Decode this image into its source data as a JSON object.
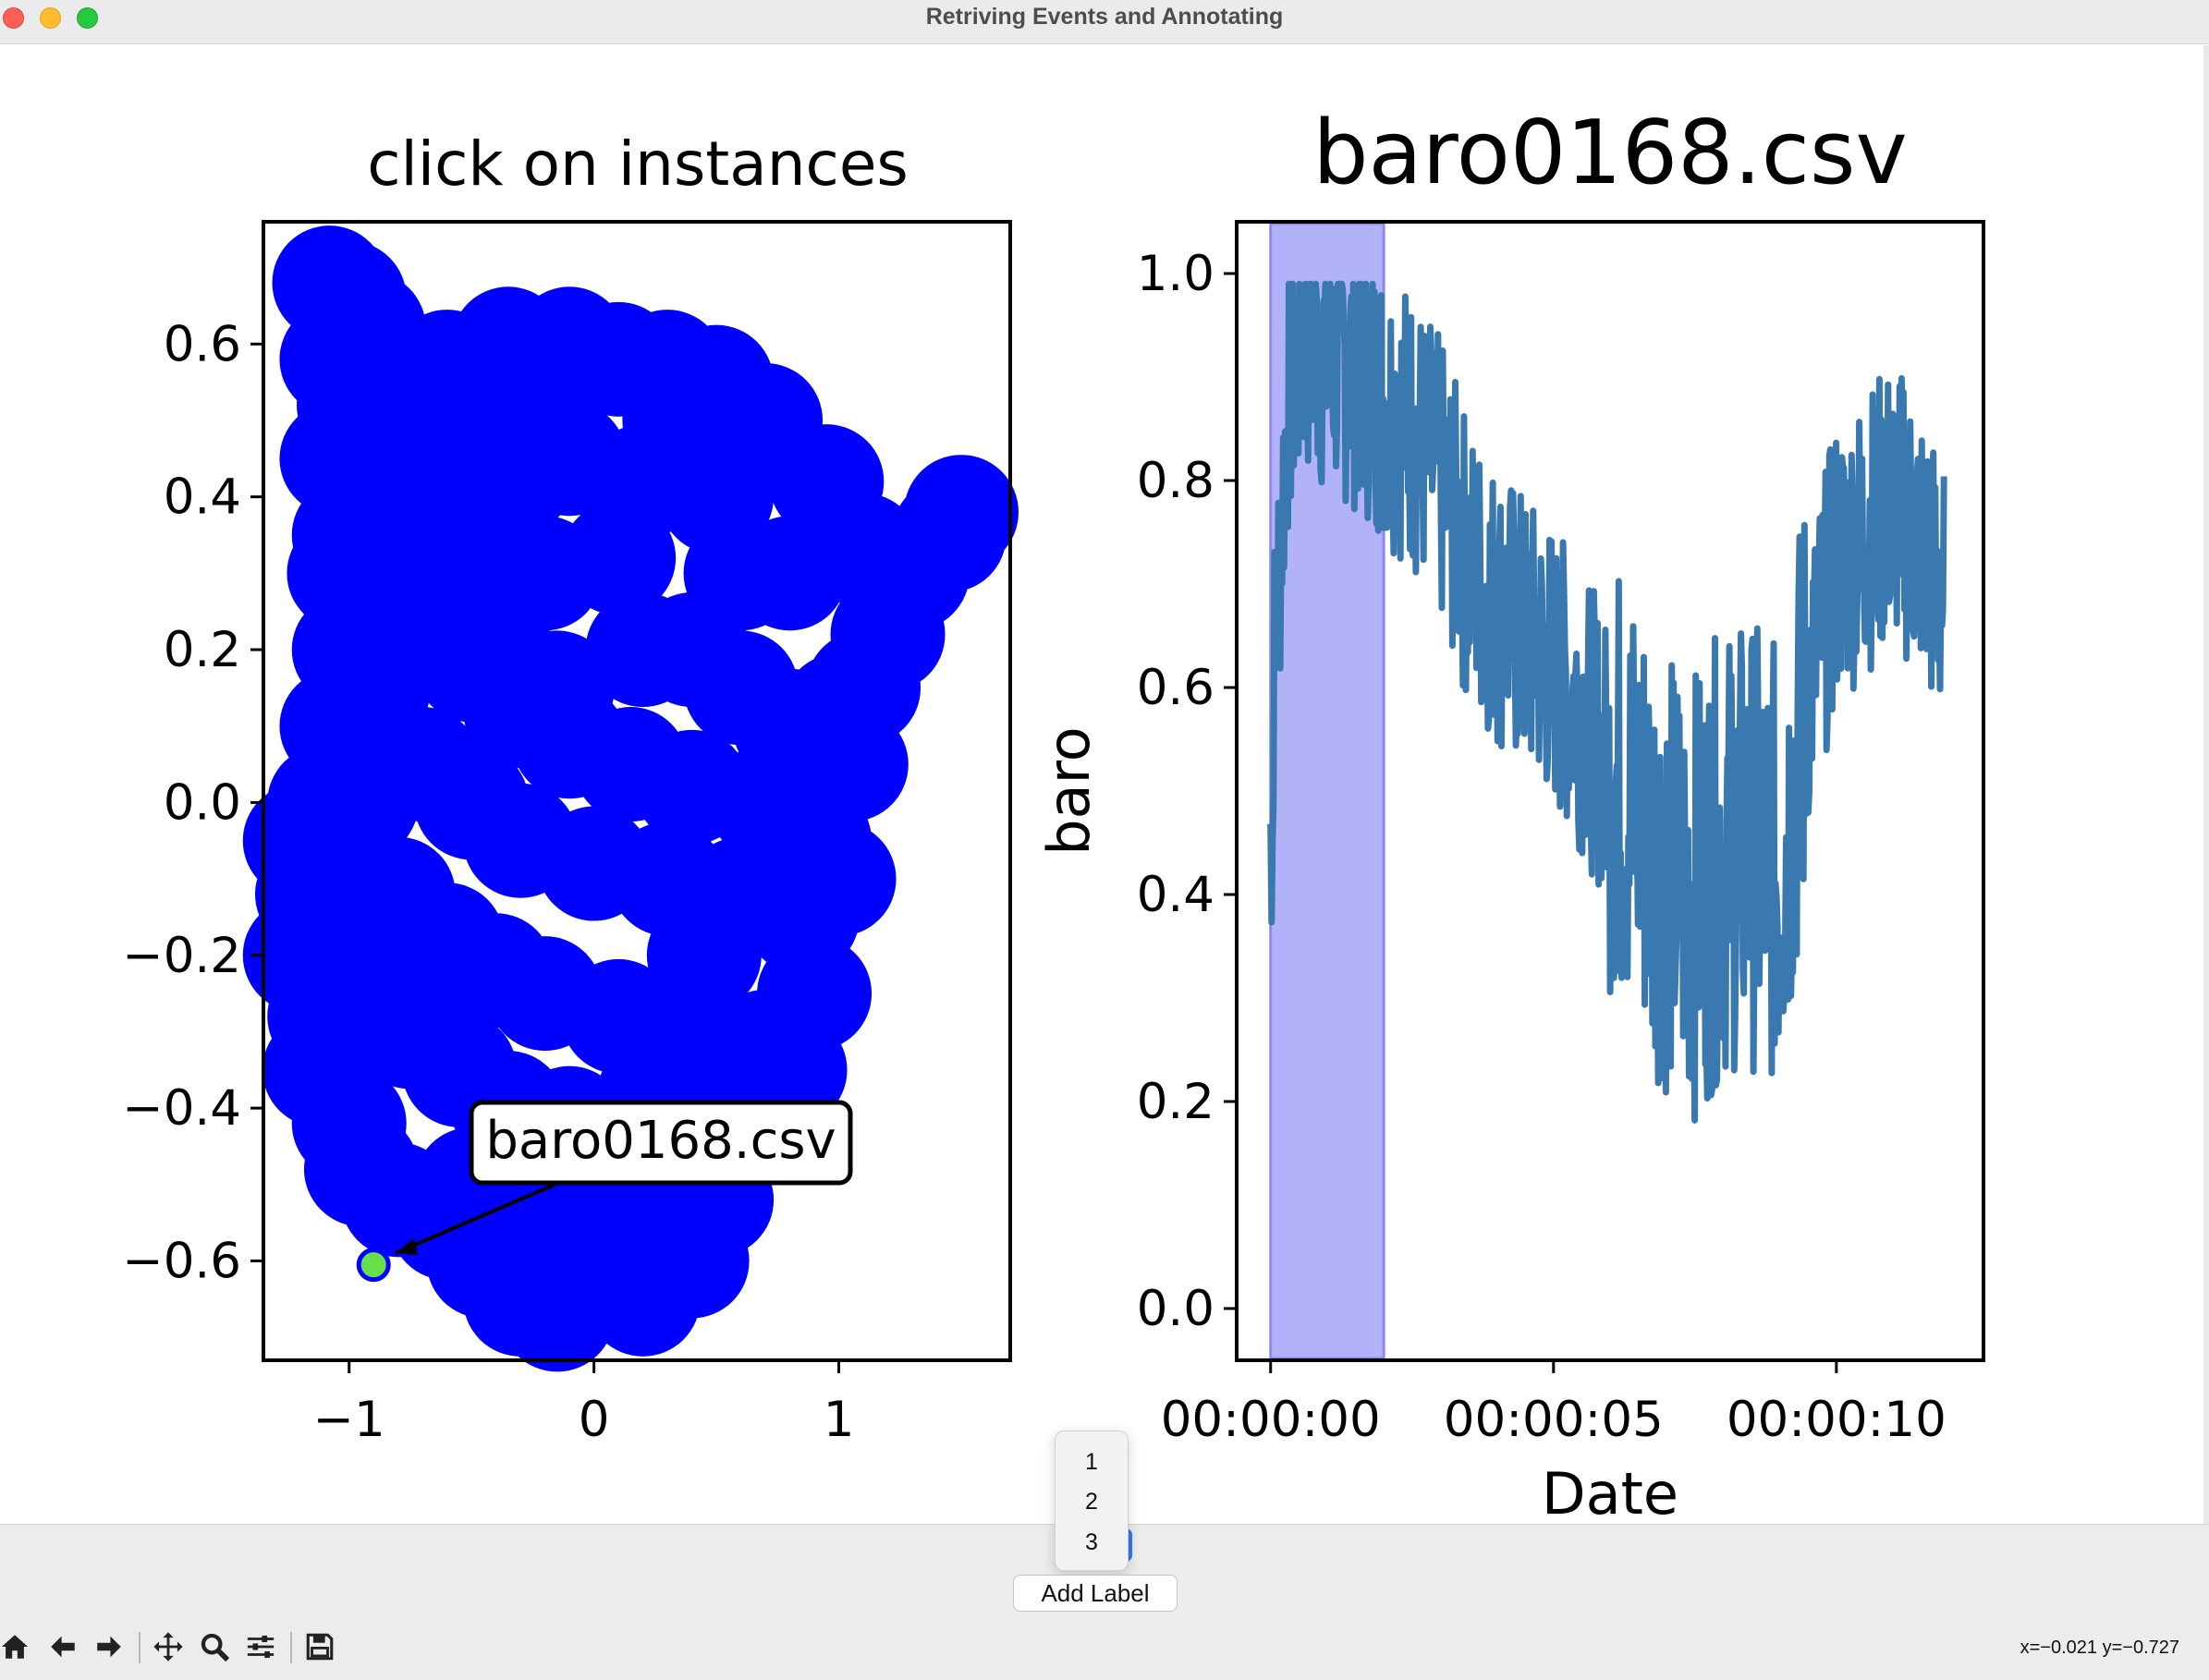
{
  "window": {
    "title": "Retriving Events and Annotating"
  },
  "left_plot": {
    "title": "click on instances",
    "x_tick_labels": [
      "−1",
      "0",
      "1"
    ],
    "y_tick_labels": [
      "0.6",
      "0.4",
      "0.2",
      "0.0",
      "−0.2",
      "−0.4",
      "−0.6"
    ],
    "annotation_text": "baro0168.csv",
    "point_color": "#0000ff",
    "selected_color": "#66e04a"
  },
  "right_plot": {
    "title": "baro0168.csv",
    "xlabel": "Date",
    "ylabel": "baro",
    "x_tick_labels": [
      "00:00:00",
      "00:00:05",
      "00:00:10"
    ],
    "y_tick_labels": [
      "0.0",
      "0.2",
      "0.4",
      "0.6",
      "0.8",
      "1.0"
    ],
    "line_color": "#3a78b0",
    "span_color": "#b2b2f8"
  },
  "chart_data": [
    {
      "type": "scatter",
      "title": "click on instances",
      "xlabel": "",
      "ylabel": "",
      "xlim": [
        -1.35,
        1.7
      ],
      "ylim": [
        -0.73,
        0.76
      ],
      "x_ticks": [
        -1,
        0,
        1
      ],
      "y_ticks": [
        -0.6,
        -0.4,
        -0.2,
        0.0,
        0.2,
        0.4,
        0.6
      ],
      "grid": false,
      "series": [
        {
          "points": [
            [
              -1.08,
              0.68
            ],
            [
              -1.0,
              0.66
            ],
            [
              -0.92,
              0.62
            ],
            [
              -1.05,
              0.58
            ],
            [
              -0.98,
              0.52
            ],
            [
              -1.05,
              0.45
            ],
            [
              -0.95,
              0.4
            ],
            [
              -1.0,
              0.35
            ],
            [
              -1.02,
              0.3
            ],
            [
              -0.95,
              0.25
            ],
            [
              -1.0,
              0.2
            ],
            [
              -0.9,
              0.15
            ],
            [
              -1.05,
              0.1
            ],
            [
              -0.85,
              0.05
            ],
            [
              -1.1,
              0.0
            ],
            [
              -1.2,
              -0.05
            ],
            [
              -1.15,
              -0.12
            ],
            [
              -1.2,
              -0.2
            ],
            [
              -1.1,
              -0.28
            ],
            [
              -1.12,
              -0.35
            ],
            [
              -1.0,
              -0.42
            ],
            [
              -0.95,
              -0.48
            ],
            [
              -0.8,
              -0.52
            ],
            [
              -0.6,
              -0.55
            ],
            [
              -0.45,
              -0.6
            ],
            [
              -0.3,
              -0.65
            ],
            [
              -0.15,
              -0.67
            ],
            [
              0.0,
              -0.63
            ],
            [
              0.2,
              -0.65
            ],
            [
              0.4,
              -0.6
            ],
            [
              0.5,
              -0.52
            ],
            [
              0.6,
              -0.4
            ],
            [
              0.8,
              -0.35
            ],
            [
              0.9,
              -0.25
            ],
            [
              1.0,
              -0.1
            ],
            [
              1.05,
              0.05
            ],
            [
              1.1,
              0.15
            ],
            [
              1.2,
              0.22
            ],
            [
              1.3,
              0.3
            ],
            [
              1.45,
              0.35
            ],
            [
              1.5,
              0.38
            ],
            [
              1.1,
              0.33
            ],
            [
              0.8,
              0.3
            ],
            [
              0.95,
              0.42
            ],
            [
              0.7,
              0.5
            ],
            [
              0.5,
              0.55
            ],
            [
              0.3,
              0.57
            ],
            [
              0.1,
              0.58
            ],
            [
              -0.1,
              0.6
            ],
            [
              -0.35,
              0.6
            ],
            [
              -0.6,
              0.57
            ],
            [
              -0.65,
              0.45
            ],
            [
              -0.5,
              0.4
            ],
            [
              -0.3,
              0.43
            ],
            [
              -0.1,
              0.45
            ],
            [
              0.2,
              0.42
            ],
            [
              0.5,
              0.4
            ],
            [
              -0.6,
              0.3
            ],
            [
              -0.4,
              0.25
            ],
            [
              -0.2,
              0.3
            ],
            [
              0.1,
              0.32
            ],
            [
              0.4,
              0.2
            ],
            [
              0.6,
              0.15
            ],
            [
              0.8,
              0.1
            ],
            [
              1.0,
              0.12
            ],
            [
              -0.5,
              0.18
            ],
            [
              -0.3,
              0.12
            ],
            [
              -0.1,
              0.08
            ],
            [
              0.15,
              0.05
            ],
            [
              0.4,
              0.02
            ],
            [
              0.7,
              0.0
            ],
            [
              0.9,
              -0.05
            ],
            [
              -0.7,
              0.05
            ],
            [
              -0.5,
              0.0
            ],
            [
              -0.3,
              -0.05
            ],
            [
              0.0,
              -0.08
            ],
            [
              0.3,
              -0.1
            ],
            [
              0.6,
              -0.12
            ],
            [
              0.85,
              -0.15
            ],
            [
              -0.8,
              -0.12
            ],
            [
              -0.6,
              -0.18
            ],
            [
              -0.4,
              -0.22
            ],
            [
              -0.2,
              -0.25
            ],
            [
              0.1,
              -0.28
            ],
            [
              0.4,
              -0.3
            ],
            [
              0.7,
              -0.32
            ],
            [
              -0.75,
              -0.3
            ],
            [
              -0.55,
              -0.35
            ],
            [
              -0.35,
              -0.4
            ],
            [
              -0.1,
              -0.42
            ],
            [
              0.2,
              -0.45
            ],
            [
              0.45,
              -0.48
            ],
            [
              -0.5,
              -0.5
            ],
            [
              -0.25,
              -0.55
            ],
            [
              0.05,
              -0.55
            ],
            [
              0.3,
              -0.52
            ],
            [
              -0.9,
              -0.2
            ],
            [
              -0.95,
              0.0
            ],
            [
              -0.85,
              0.25
            ],
            [
              -0.7,
              0.4
            ],
            [
              -0.55,
              0.5
            ],
            [
              -0.2,
              0.52
            ],
            [
              0.35,
              0.5
            ],
            [
              0.6,
              0.3
            ],
            [
              0.2,
              0.2
            ],
            [
              -0.15,
              0.15
            ],
            [
              0.45,
              -0.2
            ],
            [
              0.25,
              -0.38
            ],
            [
              -0.05,
              -0.5
            ],
            [
              0.55,
              -0.42
            ]
          ]
        }
      ],
      "highlighted_point": [
        -0.9,
        -0.605
      ],
      "annotation": "baro0168.csv"
    },
    {
      "type": "line",
      "title": "baro0168.csv",
      "xlabel": "Date",
      "ylabel": "baro",
      "xlim": [
        "-00:00:00.6",
        "00:00:12.6"
      ],
      "ylim": [
        -0.05,
        1.05
      ],
      "x_ticks": [
        "00:00:00",
        "00:00:05",
        "00:00:10"
      ],
      "y_ticks": [
        0.0,
        0.2,
        0.4,
        0.6,
        0.8,
        1.0
      ],
      "grid": false,
      "highlighted_span": [
        "00:00:00",
        "00:00:02"
      ],
      "series": [
        {
          "x": [
            "00:00:00.0",
            "00:00:00.3",
            "00:00:00.6",
            "00:00:01.0",
            "00:00:01.5",
            "00:00:02.0",
            "00:00:02.5",
            "00:00:03.0",
            "00:00:03.5",
            "00:00:04.0",
            "00:00:04.5",
            "00:00:05.0",
            "00:00:05.5",
            "00:00:06.0",
            "00:00:06.5",
            "00:00:07.0",
            "00:00:07.5",
            "00:00:08.0",
            "00:00:08.5",
            "00:00:09.0",
            "00:00:09.5",
            "00:00:10.0",
            "00:00:10.5",
            "00:00:11.0",
            "00:00:11.5",
            "00:00:11.9"
          ],
          "values": [
            0.55,
            0.88,
            0.94,
            0.92,
            0.91,
            0.88,
            0.85,
            0.8,
            0.72,
            0.68,
            0.65,
            0.62,
            0.58,
            0.52,
            0.48,
            0.42,
            0.4,
            0.44,
            0.45,
            0.42,
            0.6,
            0.72,
            0.75,
            0.78,
            0.74,
            0.68
          ]
        }
      ]
    }
  ],
  "controls": {
    "dropdown_options": [
      "1",
      "2",
      "3"
    ],
    "add_label_button": "Add Label",
    "coords_readout": "x=−0.021 y=−0.727"
  },
  "toolbar": {
    "icons": [
      "home-icon",
      "back-icon",
      "forward-icon",
      "pan-icon",
      "zoom-icon",
      "configure-subplots-icon",
      "save-icon"
    ]
  }
}
